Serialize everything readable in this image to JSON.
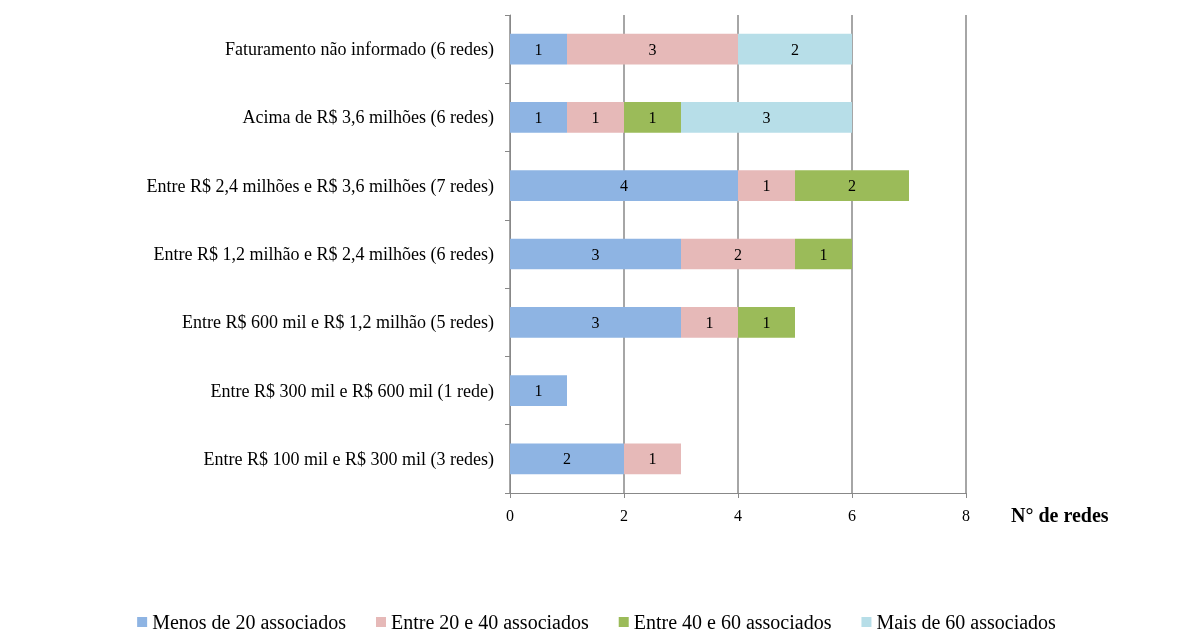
{
  "chart_data": {
    "type": "bar",
    "orientation": "horizontal",
    "stacked": true,
    "xlabel": "N° de redes",
    "categories": [
      "Faturamento não informado (6 redes)",
      "Acima de R$ 3,6 milhões (6 redes)",
      "Entre R$ 2,4 milhões e R$ 3,6 milhões (7 redes)",
      "Entre R$ 1,2 milhão e R$ 2,4 milhões (6 redes)",
      "Entre R$ 600 mil e R$ 1,2 milhão (5 redes)",
      "Entre R$ 300 mil e R$ 600 mil (1 rede)",
      "Entre R$ 100 mil e R$ 300 mil (3 redes)"
    ],
    "series": [
      {
        "name": "Menos de 20 associados",
        "color": "#8eb4e3",
        "values": [
          1,
          1,
          4,
          3,
          3,
          1,
          2
        ]
      },
      {
        "name": "Entre 20 e 40 associados",
        "color": "#e6b9b8",
        "values": [
          3,
          1,
          1,
          2,
          1,
          null,
          1
        ]
      },
      {
        "name": "Entre 40 e 60 associados",
        "color": "#9bbb59",
        "values": [
          null,
          1,
          2,
          1,
          1,
          null,
          null
        ]
      },
      {
        "name": "Mais de 60 associados",
        "color": "#b7dee8",
        "values": [
          2,
          3,
          null,
          null,
          null,
          null,
          null
        ]
      }
    ],
    "xlim": [
      0,
      8
    ],
    "xticks": [
      0,
      2,
      4,
      6,
      8
    ],
    "grid": "x",
    "legend": "bottom",
    "data_labels": true
  }
}
